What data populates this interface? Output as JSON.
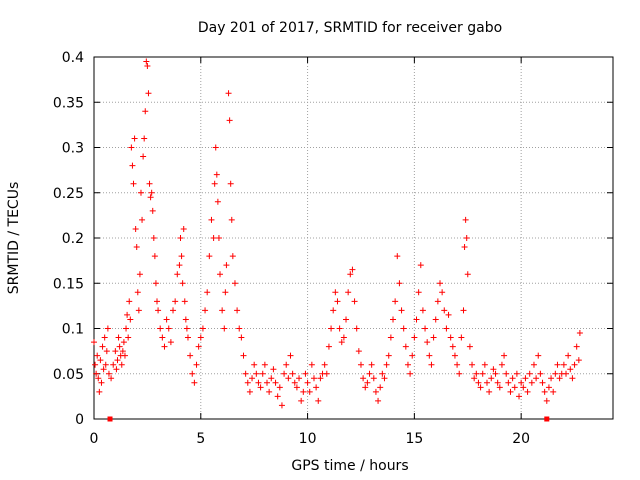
{
  "chart_data": {
    "type": "scatter",
    "title": "Day 201 of 2017, SRMTID for receiver gabo",
    "xlabel": "GPS time / hours",
    "ylabel": "SRMTID / TECUs",
    "xlim": [
      0,
      24.3
    ],
    "ylim": [
      0,
      0.4
    ],
    "x_ticks": [
      0,
      5,
      10,
      15,
      20
    ],
    "x_tick_labels": [
      "0",
      "5",
      "10",
      "15",
      "20"
    ],
    "y_ticks": [
      0,
      0.05,
      0.1,
      0.15,
      0.2,
      0.25,
      0.3,
      0.35,
      0.4
    ],
    "y_tick_labels": [
      "0",
      "0.05",
      "0.1",
      "0.15",
      "0.2",
      "0.25",
      "0.3",
      "0.35",
      "0.4"
    ],
    "grid": true,
    "marker": "+",
    "color": "#ff0000",
    "baseline_markers": [
      {
        "x": 0.75,
        "y": 0
      },
      {
        "x": 21.2,
        "y": 0
      }
    ],
    "series": [
      {
        "name": "SRMTID",
        "points": [
          [
            0.0,
            0.085
          ],
          [
            0.05,
            0.06
          ],
          [
            0.1,
            0.05
          ],
          [
            0.15,
            0.07
          ],
          [
            0.2,
            0.045
          ],
          [
            0.25,
            0.03
          ],
          [
            0.3,
            0.065
          ],
          [
            0.35,
            0.04
          ],
          [
            0.4,
            0.08
          ],
          [
            0.45,
            0.055
          ],
          [
            0.5,
            0.09
          ],
          [
            0.55,
            0.06
          ],
          [
            0.6,
            0.075
          ],
          [
            0.65,
            0.1
          ],
          [
            0.7,
            0.05
          ],
          [
            0.8,
            0.045
          ],
          [
            0.9,
            0.06
          ],
          [
            1.0,
            0.075
          ],
          [
            1.05,
            0.055
          ],
          [
            1.1,
            0.065
          ],
          [
            1.15,
            0.09
          ],
          [
            1.2,
            0.08
          ],
          [
            1.25,
            0.07
          ],
          [
            1.3,
            0.06
          ],
          [
            1.35,
            0.075
          ],
          [
            1.4,
            0.085
          ],
          [
            1.45,
            0.07
          ],
          [
            1.5,
            0.1
          ],
          [
            1.55,
            0.115
          ],
          [
            1.6,
            0.09
          ],
          [
            1.65,
            0.13
          ],
          [
            1.7,
            0.11
          ],
          [
            1.75,
            0.3
          ],
          [
            1.8,
            0.28
          ],
          [
            1.85,
            0.26
          ],
          [
            1.9,
            0.31
          ],
          [
            1.95,
            0.21
          ],
          [
            2.0,
            0.19
          ],
          [
            2.05,
            0.14
          ],
          [
            2.1,
            0.12
          ],
          [
            2.15,
            0.16
          ],
          [
            2.2,
            0.25
          ],
          [
            2.25,
            0.22
          ],
          [
            2.3,
            0.29
          ],
          [
            2.35,
            0.31
          ],
          [
            2.4,
            0.34
          ],
          [
            2.45,
            0.395
          ],
          [
            2.5,
            0.39
          ],
          [
            2.55,
            0.36
          ],
          [
            2.6,
            0.26
          ],
          [
            2.65,
            0.245
          ],
          [
            2.7,
            0.25
          ],
          [
            2.75,
            0.23
          ],
          [
            2.8,
            0.2
          ],
          [
            2.85,
            0.18
          ],
          [
            2.9,
            0.15
          ],
          [
            2.95,
            0.13
          ],
          [
            3.0,
            0.12
          ],
          [
            3.1,
            0.1
          ],
          [
            3.2,
            0.09
          ],
          [
            3.3,
            0.08
          ],
          [
            3.4,
            0.11
          ],
          [
            3.5,
            0.1
          ],
          [
            3.6,
            0.085
          ],
          [
            3.7,
            0.12
          ],
          [
            3.8,
            0.13
          ],
          [
            3.9,
            0.16
          ],
          [
            4.0,
            0.17
          ],
          [
            4.05,
            0.2
          ],
          [
            4.1,
            0.18
          ],
          [
            4.15,
            0.15
          ],
          [
            4.2,
            0.21
          ],
          [
            4.25,
            0.13
          ],
          [
            4.3,
            0.11
          ],
          [
            4.35,
            0.1
          ],
          [
            4.4,
            0.09
          ],
          [
            4.5,
            0.07
          ],
          [
            4.6,
            0.05
          ],
          [
            4.7,
            0.04
          ],
          [
            4.8,
            0.06
          ],
          [
            4.9,
            0.08
          ],
          [
            5.0,
            0.09
          ],
          [
            5.1,
            0.1
          ],
          [
            5.2,
            0.12
          ],
          [
            5.3,
            0.14
          ],
          [
            5.4,
            0.18
          ],
          [
            5.5,
            0.22
          ],
          [
            5.6,
            0.2
          ],
          [
            5.65,
            0.26
          ],
          [
            5.7,
            0.3
          ],
          [
            5.75,
            0.27
          ],
          [
            5.8,
            0.24
          ],
          [
            5.85,
            0.2
          ],
          [
            5.9,
            0.16
          ],
          [
            6.0,
            0.12
          ],
          [
            6.1,
            0.1
          ],
          [
            6.15,
            0.14
          ],
          [
            6.2,
            0.17
          ],
          [
            6.3,
            0.36
          ],
          [
            6.35,
            0.33
          ],
          [
            6.4,
            0.26
          ],
          [
            6.45,
            0.22
          ],
          [
            6.5,
            0.18
          ],
          [
            6.6,
            0.15
          ],
          [
            6.7,
            0.12
          ],
          [
            6.8,
            0.1
          ],
          [
            6.9,
            0.09
          ],
          [
            7.0,
            0.07
          ],
          [
            7.1,
            0.05
          ],
          [
            7.2,
            0.04
          ],
          [
            7.3,
            0.03
          ],
          [
            7.4,
            0.045
          ],
          [
            7.5,
            0.06
          ],
          [
            7.6,
            0.05
          ],
          [
            7.7,
            0.04
          ],
          [
            7.8,
            0.035
          ],
          [
            7.9,
            0.05
          ],
          [
            8.0,
            0.06
          ],
          [
            8.1,
            0.04
          ],
          [
            8.2,
            0.03
          ],
          [
            8.3,
            0.045
          ],
          [
            8.4,
            0.055
          ],
          [
            8.5,
            0.04
          ],
          [
            8.6,
            0.025
          ],
          [
            8.7,
            0.035
          ],
          [
            8.8,
            0.015
          ],
          [
            8.9,
            0.05
          ],
          [
            9.0,
            0.06
          ],
          [
            9.1,
            0.045
          ],
          [
            9.2,
            0.07
          ],
          [
            9.3,
            0.05
          ],
          [
            9.4,
            0.04
          ],
          [
            9.5,
            0.035
          ],
          [
            9.6,
            0.045
          ],
          [
            9.7,
            0.02
          ],
          [
            9.8,
            0.03
          ],
          [
            9.9,
            0.05
          ],
          [
            10.0,
            0.04
          ],
          [
            10.1,
            0.03
          ],
          [
            10.2,
            0.06
          ],
          [
            10.3,
            0.045
          ],
          [
            10.4,
            0.035
          ],
          [
            10.5,
            0.02
          ],
          [
            10.6,
            0.045
          ],
          [
            10.7,
            0.05
          ],
          [
            10.8,
            0.06
          ],
          [
            10.9,
            0.05
          ],
          [
            11.0,
            0.08
          ],
          [
            11.1,
            0.1
          ],
          [
            11.2,
            0.12
          ],
          [
            11.3,
            0.14
          ],
          [
            11.4,
            0.13
          ],
          [
            11.5,
            0.1
          ],
          [
            11.6,
            0.085
          ],
          [
            11.7,
            0.09
          ],
          [
            11.8,
            0.11
          ],
          [
            11.9,
            0.14
          ],
          [
            12.0,
            0.16
          ],
          [
            12.1,
            0.165
          ],
          [
            12.2,
            0.13
          ],
          [
            12.3,
            0.1
          ],
          [
            12.4,
            0.075
          ],
          [
            12.5,
            0.06
          ],
          [
            12.6,
            0.045
          ],
          [
            12.7,
            0.035
          ],
          [
            12.8,
            0.04
          ],
          [
            12.9,
            0.05
          ],
          [
            13.0,
            0.06
          ],
          [
            13.1,
            0.045
          ],
          [
            13.2,
            0.03
          ],
          [
            13.3,
            0.02
          ],
          [
            13.4,
            0.035
          ],
          [
            13.5,
            0.05
          ],
          [
            13.6,
            0.045
          ],
          [
            13.7,
            0.06
          ],
          [
            13.8,
            0.07
          ],
          [
            13.9,
            0.09
          ],
          [
            14.0,
            0.11
          ],
          [
            14.1,
            0.13
          ],
          [
            14.2,
            0.18
          ],
          [
            14.3,
            0.15
          ],
          [
            14.4,
            0.12
          ],
          [
            14.5,
            0.1
          ],
          [
            14.6,
            0.08
          ],
          [
            14.7,
            0.06
          ],
          [
            14.8,
            0.05
          ],
          [
            14.9,
            0.07
          ],
          [
            15.0,
            0.09
          ],
          [
            15.1,
            0.11
          ],
          [
            15.2,
            0.14
          ],
          [
            15.3,
            0.17
          ],
          [
            15.4,
            0.12
          ],
          [
            15.5,
            0.1
          ],
          [
            15.6,
            0.085
          ],
          [
            15.7,
            0.07
          ],
          [
            15.8,
            0.06
          ],
          [
            15.9,
            0.09
          ],
          [
            16.0,
            0.11
          ],
          [
            16.1,
            0.13
          ],
          [
            16.2,
            0.15
          ],
          [
            16.3,
            0.14
          ],
          [
            16.4,
            0.12
          ],
          [
            16.5,
            0.1
          ],
          [
            16.6,
            0.115
          ],
          [
            16.7,
            0.09
          ],
          [
            16.8,
            0.08
          ],
          [
            16.9,
            0.07
          ],
          [
            17.0,
            0.06
          ],
          [
            17.1,
            0.05
          ],
          [
            17.2,
            0.09
          ],
          [
            17.3,
            0.12
          ],
          [
            17.35,
            0.19
          ],
          [
            17.4,
            0.22
          ],
          [
            17.45,
            0.2
          ],
          [
            17.5,
            0.16
          ],
          [
            17.6,
            0.08
          ],
          [
            17.7,
            0.06
          ],
          [
            17.8,
            0.045
          ],
          [
            17.9,
            0.05
          ],
          [
            18.0,
            0.04
          ],
          [
            18.1,
            0.035
          ],
          [
            18.2,
            0.05
          ],
          [
            18.3,
            0.06
          ],
          [
            18.4,
            0.04
          ],
          [
            18.5,
            0.03
          ],
          [
            18.6,
            0.045
          ],
          [
            18.7,
            0.055
          ],
          [
            18.8,
            0.05
          ],
          [
            18.9,
            0.04
          ],
          [
            19.0,
            0.035
          ],
          [
            19.1,
            0.06
          ],
          [
            19.2,
            0.07
          ],
          [
            19.3,
            0.05
          ],
          [
            19.4,
            0.04
          ],
          [
            19.5,
            0.03
          ],
          [
            19.6,
            0.045
          ],
          [
            19.7,
            0.035
          ],
          [
            19.8,
            0.05
          ],
          [
            19.9,
            0.025
          ],
          [
            20.0,
            0.04
          ],
          [
            20.1,
            0.035
          ],
          [
            20.2,
            0.045
          ],
          [
            20.3,
            0.03
          ],
          [
            20.4,
            0.05
          ],
          [
            20.5,
            0.04
          ],
          [
            20.6,
            0.06
          ],
          [
            20.7,
            0.045
          ],
          [
            20.8,
            0.07
          ],
          [
            20.9,
            0.05
          ],
          [
            21.0,
            0.04
          ],
          [
            21.1,
            0.03
          ],
          [
            21.2,
            0.02
          ],
          [
            21.3,
            0.035
          ],
          [
            21.4,
            0.045
          ],
          [
            21.5,
            0.03
          ],
          [
            21.6,
            0.05
          ],
          [
            21.7,
            0.06
          ],
          [
            21.8,
            0.045
          ],
          [
            21.9,
            0.05
          ],
          [
            22.0,
            0.06
          ],
          [
            22.1,
            0.05
          ],
          [
            22.2,
            0.07
          ],
          [
            22.3,
            0.055
          ],
          [
            22.4,
            0.045
          ],
          [
            22.5,
            0.06
          ],
          [
            22.6,
            0.08
          ],
          [
            22.7,
            0.065
          ],
          [
            22.75,
            0.095
          ]
        ]
      }
    ]
  }
}
